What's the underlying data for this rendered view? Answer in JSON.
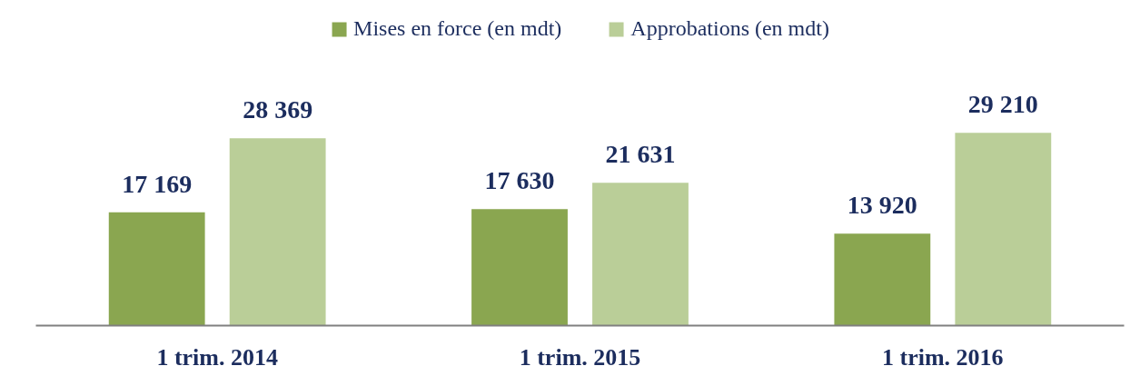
{
  "chart_data": {
    "type": "bar",
    "categories": [
      "1 trim. 2014",
      "1 trim. 2015",
      "1 trim. 2016"
    ],
    "series": [
      {
        "name": "Mises en force (en mdt)",
        "color": "#8aa650",
        "values": [
          17169,
          17630,
          13920
        ],
        "value_labels": [
          "17 169",
          "17 630",
          "13 920"
        ]
      },
      {
        "name": "Approbations (en mdt)",
        "color": "#bace98",
        "values": [
          28369,
          21631,
          29210
        ],
        "value_labels": [
          "28 369",
          "21 631",
          "29 210"
        ]
      }
    ],
    "legend": "top",
    "tick_labels": "x"
  }
}
